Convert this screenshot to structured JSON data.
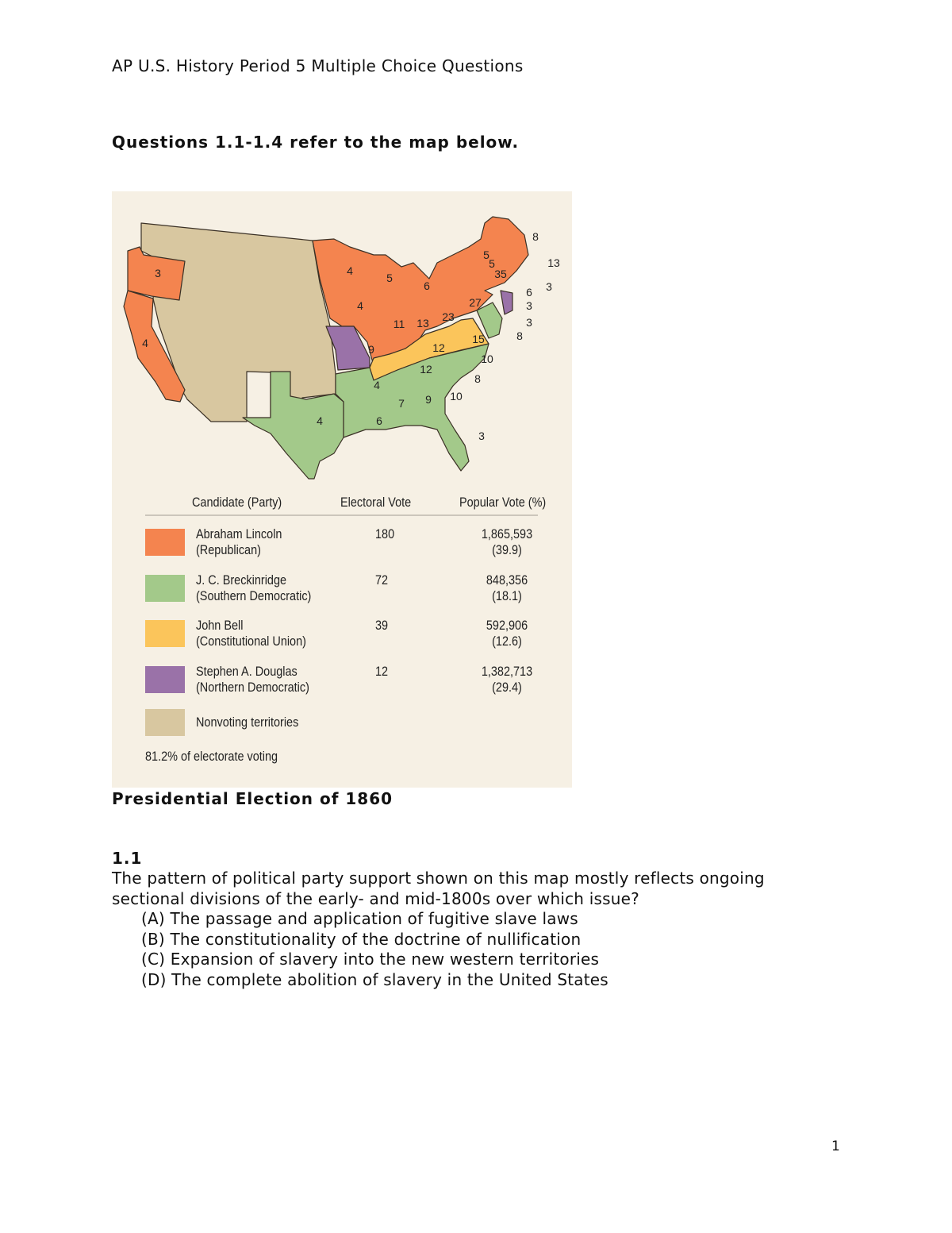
{
  "header": "AP U.S. History Period 5 Multiple Choice Questions",
  "intro": "Questions 1.1-1.4 refer to the map below.",
  "map": {
    "colors": {
      "lincoln": "#f4844f",
      "breckinridge": "#a3c98a",
      "bell": "#fbc55b",
      "douglas": "#9a72a8",
      "territories": "#d8c7a0",
      "background": "#f6f0e4"
    },
    "state_votes": [
      "3",
      "4",
      "4",
      "5",
      "6",
      "4",
      "11",
      "13",
      "23",
      "27",
      "35",
      "5",
      "5",
      "8",
      "13",
      "3",
      "6",
      "3",
      "3",
      "8",
      "9",
      "12",
      "15",
      "12",
      "10",
      "8",
      "4",
      "7",
      "9",
      "10",
      "6",
      "3",
      "4"
    ],
    "legend": {
      "headers": [
        "Candidate (Party)",
        "Electoral Vote",
        "Popular Vote (%)"
      ],
      "rows": [
        {
          "name": "Abraham Lincoln",
          "party": "(Republican)",
          "electoral": "180",
          "popular": "1,865,593",
          "pct": "(39.9)"
        },
        {
          "name": "J. C. Breckinridge",
          "party": "(Southern Democratic)",
          "electoral": "72",
          "popular": "848,356",
          "pct": "(18.1)"
        },
        {
          "name": "John Bell",
          "party": "(Constitutional Union)",
          "electoral": "39",
          "popular": "592,906",
          "pct": "(12.6)"
        },
        {
          "name": "Stephen A. Douglas",
          "party": "(Northern Democratic)",
          "electoral": "12",
          "popular": "1,382,713",
          "pct": "(29.4)"
        }
      ],
      "nonvoting": "Nonvoting territories",
      "turnout": "81.2% of electorate voting"
    }
  },
  "caption": "Presidential Election of 1860",
  "question": {
    "number": "1.1",
    "text": "The pattern of political party support shown on this map mostly reflects ongoing sectional divisions of the early- and mid-1800s over which issue?",
    "options": [
      "(A) The passage and application of fugitive slave laws",
      "(B) The constitutionality of the doctrine of nullification",
      "(C) Expansion of slavery into the new western territories",
      "(D) The complete abolition of slavery in the United States"
    ]
  },
  "page_number": "1"
}
